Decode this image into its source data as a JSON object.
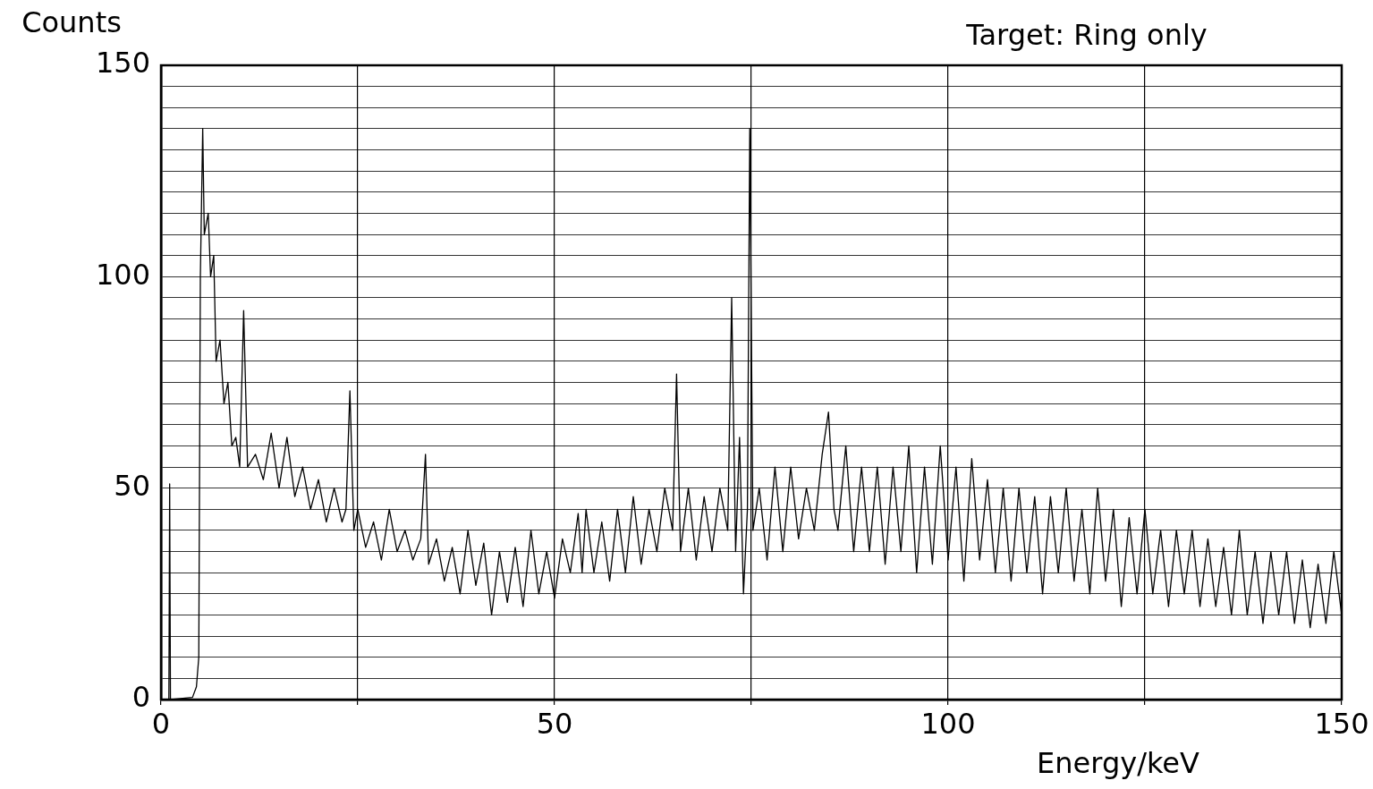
{
  "chart_data": {
    "type": "line",
    "xlabel": "Energy/keV",
    "ylabel": "Counts",
    "annotations": [
      "Target: Ring only"
    ],
    "x": [
      0,
      1.0,
      1.1,
      1.2,
      4.0,
      4.5,
      4.8,
      5.0,
      5.3,
      5.5,
      6.0,
      6.3,
      6.7,
      7.0,
      7.5,
      8.0,
      8.5,
      9.0,
      9.5,
      10.0,
      10.5,
      11.0,
      12,
      13,
      14,
      15,
      16,
      17,
      18,
      19,
      20,
      21,
      22,
      23,
      23.5,
      24,
      24.5,
      25,
      26,
      27,
      28,
      29,
      30,
      31,
      32,
      33,
      33.6,
      34,
      35,
      36,
      37,
      38,
      39,
      40,
      41,
      42,
      43,
      44,
      45,
      46,
      47,
      48,
      49,
      50,
      51,
      52,
      53,
      53.5,
      54,
      55,
      56,
      57,
      58,
      59,
      60,
      61,
      62,
      63,
      64,
      65,
      65.5,
      66,
      67,
      68,
      69,
      70,
      71,
      72,
      72.5,
      73,
      73.5,
      74,
      74.5,
      74.8,
      75.2,
      76,
      77,
      78,
      79,
      80,
      81,
      82,
      83,
      84,
      84.8,
      85.5,
      86,
      87,
      88,
      89,
      90,
      91,
      92,
      93,
      94,
      95,
      96,
      97,
      98,
      99,
      100,
      101,
      102,
      103,
      104,
      105,
      106,
      107,
      108,
      109,
      110,
      111,
      112,
      113,
      114,
      115,
      116,
      117,
      118,
      119,
      120,
      121,
      122,
      123,
      124,
      125,
      126,
      127,
      128,
      129,
      130,
      131,
      132,
      133,
      134,
      135,
      136,
      137,
      138,
      139,
      140,
      141,
      142,
      143,
      144,
      145,
      146,
      147,
      148,
      149,
      150
    ],
    "series": [
      {
        "color": "#000000",
        "values": [
          0,
          0,
          51,
          0,
          0.5,
          3,
          10,
          100,
          135,
          110,
          115,
          100,
          105,
          80,
          85,
          70,
          75,
          60,
          62,
          55,
          92,
          55,
          58,
          52,
          63,
          50,
          62,
          48,
          55,
          45,
          52,
          42,
          50,
          42,
          45,
          73,
          40,
          45,
          36,
          42,
          33,
          45,
          35,
          40,
          33,
          38,
          58,
          32,
          38,
          28,
          36,
          25,
          40,
          27,
          37,
          20,
          35,
          23,
          36,
          22,
          40,
          25,
          35,
          24,
          38,
          30,
          44,
          30,
          45,
          30,
          42,
          28,
          45,
          30,
          48,
          32,
          45,
          35,
          50,
          40,
          77,
          35,
          50,
          33,
          48,
          35,
          50,
          40,
          95,
          35,
          62,
          25,
          45,
          135,
          40,
          50,
          33,
          55,
          35,
          55,
          38,
          50,
          40,
          58,
          68,
          45,
          40,
          60,
          35,
          55,
          35,
          55,
          32,
          55,
          35,
          60,
          30,
          55,
          32,
          60,
          33,
          55,
          28,
          57,
          33,
          52,
          30,
          50,
          28,
          50,
          30,
          48,
          25,
          48,
          30,
          50,
          28,
          45,
          25,
          50,
          28,
          45,
          22,
          43,
          25,
          45,
          25,
          40,
          22,
          40,
          25,
          40,
          22,
          38,
          22,
          36,
          20,
          40,
          20,
          35,
          18,
          35,
          20,
          35,
          18,
          33,
          17,
          32,
          18,
          35,
          20
        ]
      }
    ],
    "xlim": [
      0,
      150
    ],
    "ylim": [
      0,
      150
    ],
    "xticks": [
      0,
      {
        "value": 25,
        "label": null
      },
      50,
      {
        "value": 75,
        "label": null
      },
      100,
      {
        "value": 125,
        "label": null
      },
      150
    ],
    "yticks": [
      0,
      {
        "value": 5,
        "label": null
      },
      {
        "value": 10,
        "label": null
      },
      {
        "value": 15,
        "label": null
      },
      {
        "value": 20,
        "label": null
      },
      {
        "value": 25,
        "label": null
      },
      {
        "value": 30,
        "label": null
      },
      {
        "value": 35,
        "label": null
      },
      {
        "value": 40,
        "label": null
      },
      {
        "value": 45,
        "label": null
      },
      50,
      {
        "value": 55,
        "label": null
      },
      {
        "value": 60,
        "label": null
      },
      {
        "value": 65,
        "label": null
      },
      {
        "value": 70,
        "label": null
      },
      {
        "value": 75,
        "label": null
      },
      {
        "value": 80,
        "label": null
      },
      {
        "value": 85,
        "label": null
      },
      {
        "value": 90,
        "label": null
      },
      {
        "value": 95,
        "label": null
      },
      100,
      {
        "value": 105,
        "label": null
      },
      {
        "value": 110,
        "label": null
      },
      {
        "value": 115,
        "label": null
      },
      {
        "value": 120,
        "label": null
      },
      {
        "value": 125,
        "label": null
      },
      {
        "value": 130,
        "label": null
      },
      {
        "value": 135,
        "label": null
      },
      {
        "value": 140,
        "label": null
      },
      {
        "value": 145,
        "label": null
      },
      150
    ],
    "grid": true,
    "legend": false,
    "marker": "none",
    "line_style": "solid"
  }
}
